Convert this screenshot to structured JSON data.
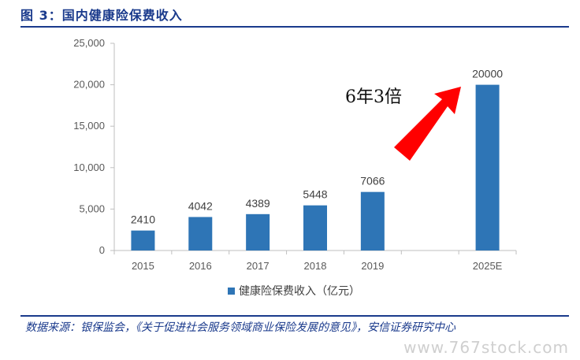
{
  "header": {
    "title": "图 3：国内健康险保费收入"
  },
  "footer": {
    "source": "数据来源：银保监会，《关于促进社会服务领域商业保险发展的意见》，安信证券研究中心",
    "watermark": "www.767stock.com"
  },
  "chart_data": {
    "type": "bar",
    "categories": [
      "2015",
      "2016",
      "2017",
      "2018",
      "2019",
      "",
      "2025E"
    ],
    "series": [
      {
        "name": "健康险保费收入（亿元）",
        "values": [
          2410,
          4042,
          4389,
          5448,
          7066,
          null,
          20000
        ]
      }
    ],
    "data_labels": [
      "2410",
      "4042",
      "4389",
      "5448",
      "7066",
      "",
      "20000"
    ],
    "ylim": [
      0,
      25000
    ],
    "yticks": [
      0,
      5000,
      10000,
      15000,
      20000,
      25000
    ],
    "ytick_labels": [
      "0",
      "5,000",
      "10,000",
      "15,000",
      "20,000",
      "25,000"
    ],
    "bar_color": "#2e75b6",
    "grid": false,
    "legend_position": "bottom",
    "annotation": {
      "text": "6年3倍",
      "arrow_color": "#ff0000"
    }
  }
}
